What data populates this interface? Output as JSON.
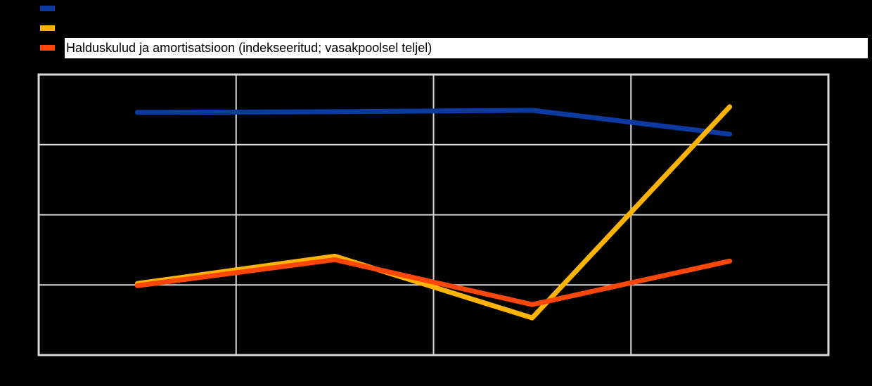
{
  "background_color": "#000000",
  "legend": {
    "items": [
      {
        "label": "",
        "color": "#0C3AA0"
      },
      {
        "label": "",
        "color": "#FFB401"
      },
      {
        "label": "Halduskulud ja amortisatsioon (indekseeritud; vasakpoolsel teljel)",
        "color": "#FF4709",
        "label_bg": "#FFFFFF"
      }
    ]
  },
  "chart_data": {
    "type": "line",
    "categories": [
      "",
      "",
      "",
      ""
    ],
    "series": [
      {
        "name": "",
        "color": "#0C3AA0",
        "values": [
          3.46,
          3.47,
          3.49,
          3.15
        ]
      },
      {
        "name": "",
        "color": "#FFB401",
        "values": [
          1.02,
          1.41,
          0.53,
          3.54
        ]
      },
      {
        "name": "Halduskulud ja amortisatsioon (indekseeritud; vasakpoolsel teljel)",
        "color": "#FF4709",
        "values": [
          0.99,
          1.36,
          0.72,
          1.34
        ]
      }
    ],
    "title": "",
    "xlabel": "",
    "ylabel": "",
    "ylim": [
      0,
      4
    ],
    "grid": true,
    "gridline_color": "#D9D9D9",
    "plot_border_color": "#D9D9D9",
    "legend_position": "top-left",
    "axis_tick_labels_visible": false,
    "line_width": 7
  }
}
